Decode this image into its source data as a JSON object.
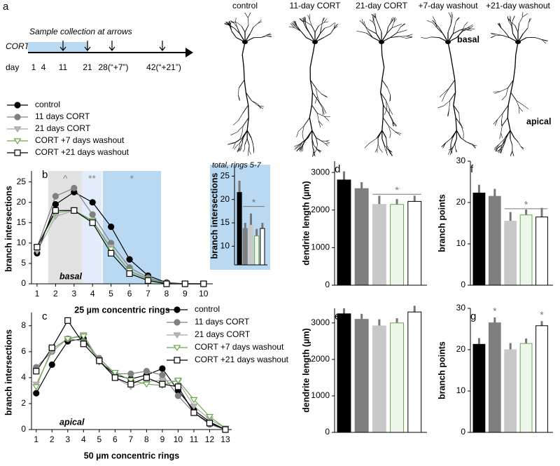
{
  "panel_a": {
    "letter": "a",
    "timeline": {
      "title": "Sample collection at arrows",
      "row_label": "CORT",
      "axis_label": "day",
      "days": [
        "1",
        "4",
        "11",
        "21",
        "28(“+7”)",
        "42(“+21”)"
      ]
    },
    "neurons": {
      "labels": [
        "control",
        "11-day CORT",
        "21-day CORT",
        "+7-day washout",
        "+21-day washout"
      ],
      "basal": "basal",
      "apical": "apical"
    }
  },
  "chart_data": [
    {
      "type": "line",
      "panel": "b",
      "annotation": "basal",
      "xlabel": "25 µm concentric rings",
      "ylabel": "branch intersections",
      "x": [
        1,
        2,
        3,
        4,
        5,
        6,
        7,
        8,
        9,
        10
      ],
      "xlim": [
        0.7,
        10.5
      ],
      "xticks": [
        1,
        2,
        3,
        4,
        5,
        6,
        7,
        8,
        9,
        10
      ],
      "ylim": [
        0,
        27
      ],
      "yticks": [
        0,
        5,
        10,
        15,
        20,
        25
      ],
      "bands": [
        {
          "from": 1.6,
          "to": 3.45,
          "color": "#e2e2e2",
          "label": "^"
        },
        {
          "from": 3.45,
          "to": 4.5,
          "color": "#e3ecfb",
          "label": "**"
        },
        {
          "from": 4.55,
          "to": 7.7,
          "color": "#b9d8f2",
          "label": "*"
        }
      ],
      "series": [
        {
          "name": "control",
          "marker": "circle",
          "color": "#000000",
          "fill": "#000000",
          "values": [
            7.5,
            19.5,
            22.5,
            20,
            14,
            6,
            2,
            0.3,
            0,
            0
          ]
        },
        {
          "name": "11 days CORT",
          "marker": "circle",
          "color": "#808080",
          "fill": "#808080",
          "values": [
            9,
            21.5,
            23.5,
            17,
            10,
            4,
            1.5,
            0.2,
            0,
            0
          ]
        },
        {
          "name": "21 days CORT",
          "marker": "triangle",
          "color": "#a8a8a8",
          "fill": "#b8b8b8",
          "values": [
            8,
            16.5,
            18,
            15.5,
            9,
            3,
            1,
            0,
            0,
            0
          ]
        },
        {
          "name": "CORT +7 days washout",
          "marker": "triangle",
          "color": "#6aa84f",
          "fill": "#ffffff",
          "values": [
            9,
            17.5,
            18,
            15.5,
            8.5,
            3.2,
            1.2,
            0,
            0,
            0
          ]
        },
        {
          "name": "CORT +21 days washout",
          "marker": "square",
          "color": "#000000",
          "fill": "#ffffff",
          "values": [
            9,
            18,
            18,
            15,
            7.5,
            2.5,
            0.8,
            0,
            0,
            0
          ]
        }
      ]
    },
    {
      "type": "bar",
      "title": "total, rings 5-7",
      "ylabel": "branch intersections",
      "ylim": [
        6,
        27
      ],
      "yticks": [
        10,
        15,
        20,
        25
      ],
      "values": [
        21.5,
        13.8,
        14.5,
        12.2,
        13.8
      ],
      "errors": [
        2.5,
        1.2,
        2.5,
        1.5,
        1.2
      ],
      "colors": [
        "#000000",
        "#7f7f7f",
        "#c8c8c8",
        "#eef6ea",
        "#ffffff"
      ],
      "edgecolors": [
        "#000000",
        "#7f7f7f",
        "#c8c8c8",
        "#6aa84f",
        "#000000"
      ],
      "bracket": {
        "from": 1,
        "to": 4,
        "y": 18.5,
        "label": "*"
      }
    },
    {
      "type": "line",
      "panel": "c",
      "annotation": "apical",
      "xlabel": "50 µm concentric rings",
      "ylabel": "branch intersections",
      "x": [
        1,
        2,
        3,
        4,
        5,
        6,
        7,
        8,
        9,
        10,
        11,
        12,
        13
      ],
      "xlim": [
        0.7,
        13.4
      ],
      "xticks": [
        1,
        2,
        3,
        4,
        5,
        6,
        7,
        8,
        9,
        10,
        11,
        12,
        13
      ],
      "ylim": [
        0,
        8.8
      ],
      "yticks": [
        0,
        2,
        4,
        6,
        8
      ],
      "series": [
        {
          "name": "control",
          "marker": "circle",
          "color": "#000000",
          "fill": "#000000",
          "values": [
            2.8,
            5,
            6.8,
            7,
            5.3,
            4.2,
            3.9,
            4.2,
            4.7,
            3,
            1.5,
            0.6,
            0
          ]
        },
        {
          "name": "11 days CORT",
          "marker": "circle",
          "color": "#808080",
          "fill": "#808080",
          "values": [
            4.8,
            6,
            7,
            6.8,
            5.5,
            4.3,
            4.3,
            4.5,
            4.2,
            2.6,
            1.3,
            0.4,
            0
          ]
        },
        {
          "name": "21 days CORT",
          "marker": "triangle",
          "color": "#a8a8a8",
          "fill": "#b8b8b8",
          "values": [
            3.5,
            6,
            7,
            7.3,
            5.3,
            4,
            3.3,
            3.7,
            3.8,
            3.7,
            1.8,
            0.8,
            0.1
          ]
        },
        {
          "name": "CORT +7 days washout",
          "marker": "triangle",
          "color": "#6aa84f",
          "fill": "#ffffff",
          "values": [
            3.3,
            6.2,
            7,
            7.2,
            5.2,
            4.4,
            3.8,
            3.5,
            3.4,
            3.8,
            2.3,
            1,
            0.1
          ]
        },
        {
          "name": "CORT +21 days washout",
          "marker": "square",
          "color": "#000000",
          "fill": "#ffffff",
          "values": [
            4.5,
            6.3,
            8.4,
            6.6,
            5.3,
            4,
            3.5,
            4,
            3.5,
            3.3,
            1.3,
            0.5,
            0
          ]
        }
      ]
    },
    {
      "type": "bar",
      "panel": "d",
      "ylabel": "dendrite length (µm)",
      "ylim": [
        0,
        3300
      ],
      "yticks": [
        0,
        1000,
        2000,
        3000
      ],
      "values": [
        2800,
        2570,
        2150,
        2150,
        2230
      ],
      "errors": [
        230,
        170,
        230,
        140,
        150
      ],
      "colors": [
        "#000000",
        "#7f7f7f",
        "#c8c8c8",
        "#eef6ea",
        "#ffffff"
      ],
      "edgecolors": [
        "#000000",
        "#7f7f7f",
        "#c8c8c8",
        "#6aa84f",
        "#000000"
      ],
      "bracket": {
        "from": 2,
        "to": 4,
        "y": 2420,
        "label": "*"
      }
    },
    {
      "type": "bar",
      "panel": "f",
      "ylabel": "branch points",
      "ylim": [
        0,
        30
      ],
      "yticks": [
        0,
        10,
        20,
        30
      ],
      "values": [
        22.3,
        21.5,
        15.5,
        17,
        16.5
      ],
      "errors": [
        2,
        1.8,
        2.2,
        1.3,
        2.2
      ],
      "colors": [
        "#000000",
        "#7f7f7f",
        "#c8c8c8",
        "#eef6ea",
        "#ffffff"
      ],
      "edgecolors": [
        "#000000",
        "#7f7f7f",
        "#c8c8c8",
        "#6aa84f",
        "#000000"
      ],
      "bracket": {
        "from": 2,
        "to": 4,
        "y": 18.5,
        "label": "*"
      }
    },
    {
      "type": "bar",
      "panel": "e",
      "ylabel": "dendrite length (µm)",
      "ylim": [
        0,
        3400
      ],
      "yticks": [
        0,
        1000,
        2000,
        3000
      ],
      "values": [
        3250,
        3100,
        2920,
        3000,
        3300
      ],
      "errors": [
        150,
        150,
        180,
        130,
        170
      ],
      "colors": [
        "#000000",
        "#7f7f7f",
        "#c8c8c8",
        "#eef6ea",
        "#ffffff"
      ],
      "edgecolors": [
        "#000000",
        "#7f7f7f",
        "#c8c8c8",
        "#6aa84f",
        "#000000"
      ]
    },
    {
      "type": "bar",
      "panel": "g",
      "ylabel": "branch points",
      "ylim": [
        0,
        30
      ],
      "yticks": [
        0,
        10,
        20,
        30
      ],
      "values": [
        21.3,
        26.5,
        20,
        21.5,
        25.8
      ],
      "errors": [
        1.5,
        1.3,
        1.6,
        1.2,
        1.1
      ],
      "colors": [
        "#000000",
        "#7f7f7f",
        "#c8c8c8",
        "#eef6ea",
        "#ffffff"
      ],
      "edgecolors": [
        "#000000",
        "#7f7f7f",
        "#c8c8c8",
        "#6aa84f",
        "#000000"
      ],
      "stars": [
        {
          "bar": 1,
          "label": "*"
        },
        {
          "bar": 4,
          "label": "*"
        }
      ]
    }
  ]
}
